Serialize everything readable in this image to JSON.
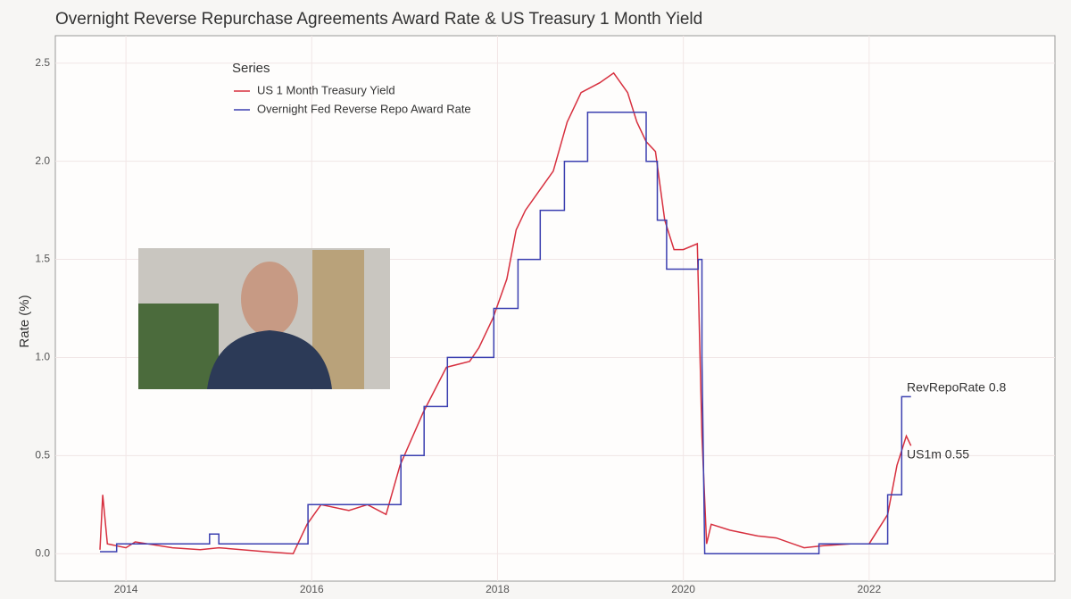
{
  "chart_data": {
    "type": "line",
    "title": "Overnight Reverse Repurchase Agreements Award Rate & US Treasury 1 Month Yield",
    "y_label": "Rate (%)",
    "legend_title": "Series",
    "legend": "top-left",
    "grid": true,
    "xlim": [
      2013.24,
      2024.0
    ],
    "xticks": [
      2014,
      2016,
      2018,
      2020,
      2022
    ],
    "ylim": [
      -0.14,
      2.64
    ],
    "yticks": [
      {
        "value": 0,
        "label": "0.0"
      },
      0.5,
      {
        "value": 1,
        "label": "1.0"
      },
      1.5,
      {
        "value": 2,
        "label": "2.0"
      },
      2.5
    ],
    "series": [
      {
        "name": "US 1 Month Treasury Yield",
        "color": "#d7303f",
        "x": [
          2013.72,
          2013.75,
          2013.8,
          2014.0,
          2014.1,
          2014.5,
          2014.8,
          2015.0,
          2015.5,
          2015.8,
          2015.95,
          2016.1,
          2016.4,
          2016.6,
          2016.8,
          2016.95,
          2017.2,
          2017.45,
          2017.7,
          2017.8,
          2017.95,
          2018.1,
          2018.2,
          2018.3,
          2018.45,
          2018.6,
          2018.75,
          2018.9,
          2019.1,
          2019.25,
          2019.4,
          2019.5,
          2019.6,
          2019.7,
          2019.8,
          2019.9,
          2020.0,
          2020.15,
          2020.2,
          2020.25,
          2020.3,
          2020.5,
          2020.8,
          2021.0,
          2021.3,
          2021.5,
          2021.8,
          2022.0,
          2022.2,
          2022.3,
          2022.4,
          2022.45
        ],
        "values": [
          0.02,
          0.3,
          0.05,
          0.03,
          0.06,
          0.03,
          0.02,
          0.03,
          0.01,
          0.0,
          0.15,
          0.25,
          0.22,
          0.25,
          0.2,
          0.45,
          0.72,
          0.95,
          0.98,
          1.05,
          1.2,
          1.4,
          1.65,
          1.75,
          1.85,
          1.95,
          2.2,
          2.35,
          2.4,
          2.45,
          2.35,
          2.2,
          2.1,
          2.05,
          1.7,
          1.55,
          1.55,
          1.58,
          0.6,
          0.05,
          0.15,
          0.12,
          0.09,
          0.08,
          0.03,
          0.04,
          0.05,
          0.05,
          0.2,
          0.45,
          0.6,
          0.55
        ]
      },
      {
        "name": "Overnight Fed Reverse Repo Award Rate",
        "color": "#3b3fb0",
        "x": [
          2013.72,
          2013.9,
          2013.9,
          2014.9,
          2014.9,
          2015.0,
          2015.0,
          2015.96,
          2015.96,
          2016.96,
          2016.96,
          2017.21,
          2017.21,
          2017.46,
          2017.46,
          2017.96,
          2017.96,
          2018.22,
          2018.22,
          2018.46,
          2018.46,
          2018.72,
          2018.72,
          2018.97,
          2018.97,
          2019.6,
          2019.6,
          2019.72,
          2019.72,
          2019.82,
          2019.82,
          2020.16,
          2020.16,
          2020.2,
          2020.2,
          2020.23,
          2021.46,
          2021.46,
          2022.2,
          2022.2,
          2022.35,
          2022.35,
          2022.45
        ],
        "values": [
          0.01,
          0.01,
          0.05,
          0.05,
          0.1,
          0.1,
          0.05,
          0.05,
          0.25,
          0.25,
          0.5,
          0.5,
          0.75,
          0.75,
          1.0,
          1.0,
          1.25,
          1.25,
          1.5,
          1.5,
          1.75,
          1.75,
          2.0,
          2.0,
          2.25,
          2.25,
          2.0,
          2.0,
          1.7,
          1.7,
          1.45,
          1.45,
          1.5,
          1.5,
          1.0,
          0.0,
          0.0,
          0.05,
          0.05,
          0.3,
          0.3,
          0.8,
          0.8
        ]
      }
    ],
    "annotations": [
      "RevRepoRate 0.8",
      "US1m 0.55"
    ]
  }
}
